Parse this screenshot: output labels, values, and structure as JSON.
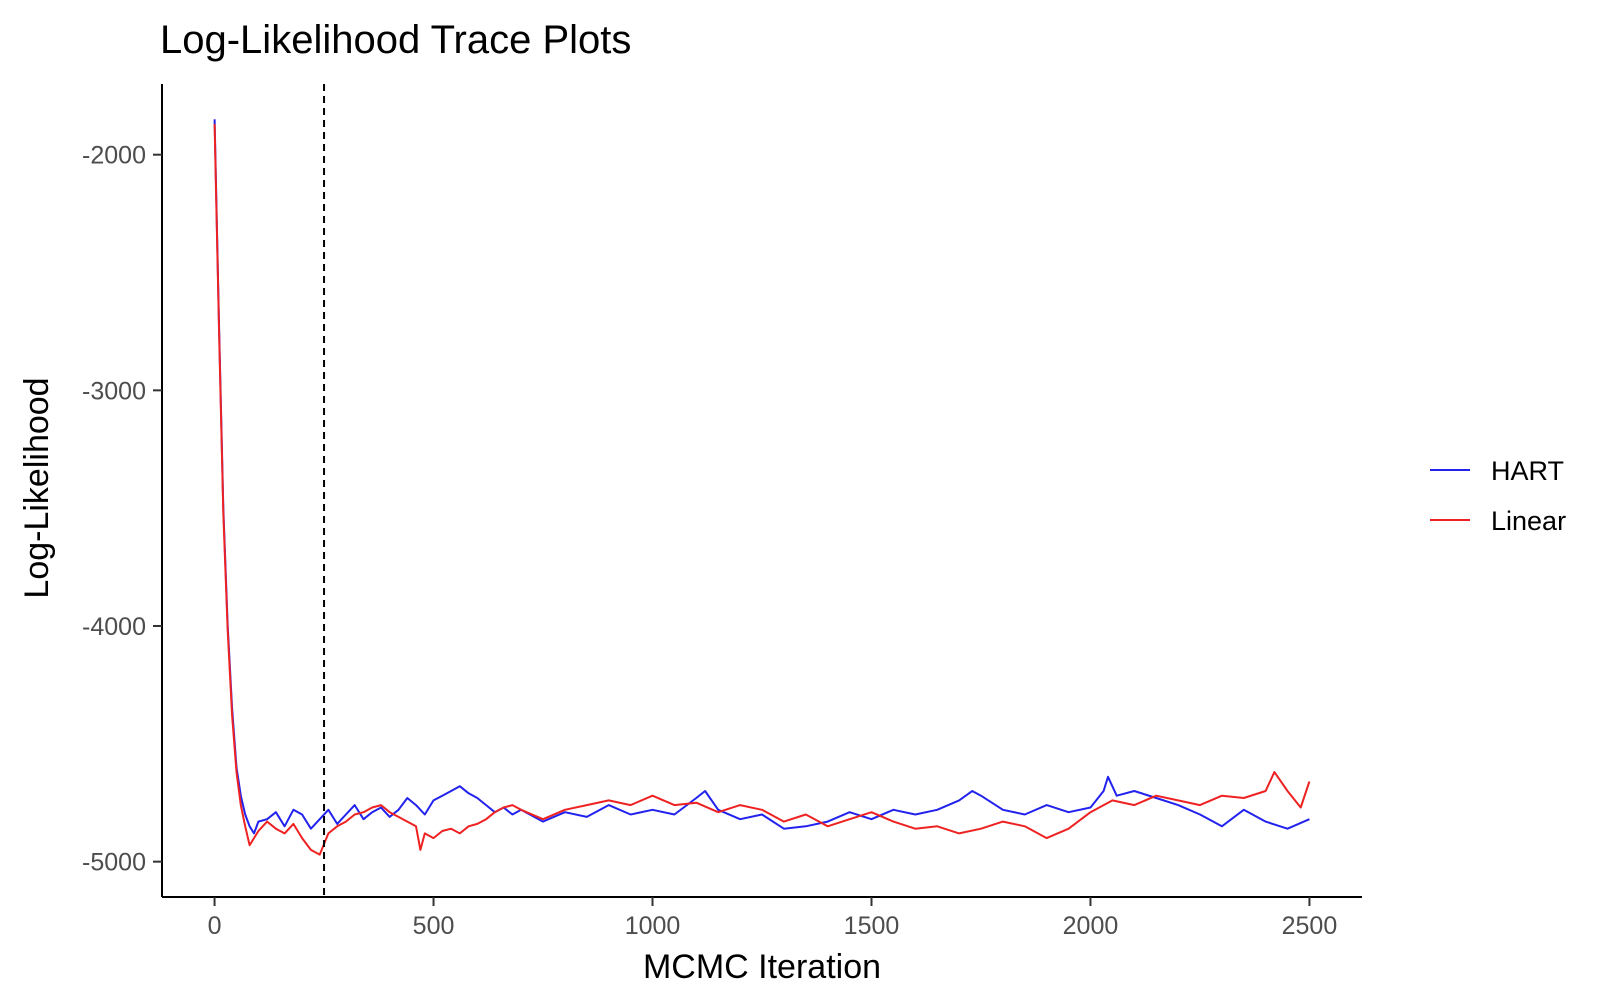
{
  "chart_data": {
    "type": "line",
    "title": "Log-Likelihood Trace Plots",
    "xlabel": "MCMC Iteration",
    "ylabel": "Log-Likelihood",
    "xlim": [
      -120,
      2620
    ],
    "ylim": [
      -5150,
      -1700
    ],
    "x_ticks": [
      0,
      500,
      1000,
      1500,
      2000,
      2500
    ],
    "y_ticks": [
      -5000,
      -4000,
      -3000,
      -2000
    ],
    "x_tick_labels": [
      "0",
      "500",
      "1000",
      "1500",
      "2000",
      "2500"
    ],
    "y_tick_labels": [
      "-5000",
      "-4000",
      "-3000",
      "-2000"
    ],
    "grid": false,
    "legend_position": "right",
    "reference_line": {
      "x": 250,
      "style": "dashed",
      "color": "#000000"
    },
    "series": [
      {
        "name": "HART",
        "color": "#2222ee",
        "x": [
          0,
          10,
          20,
          30,
          40,
          50,
          60,
          70,
          80,
          90,
          100,
          120,
          140,
          160,
          180,
          200,
          220,
          240,
          260,
          280,
          300,
          320,
          340,
          360,
          380,
          400,
          420,
          440,
          460,
          480,
          500,
          520,
          540,
          560,
          580,
          600,
          620,
          640,
          660,
          680,
          700,
          750,
          800,
          850,
          900,
          950,
          1000,
          1050,
          1100,
          1120,
          1150,
          1200,
          1250,
          1300,
          1350,
          1400,
          1450,
          1500,
          1550,
          1600,
          1650,
          1700,
          1730,
          1750,
          1800,
          1850,
          1900,
          1950,
          2000,
          2030,
          2040,
          2060,
          2100,
          2150,
          2200,
          2250,
          2300,
          2350,
          2400,
          2450,
          2500
        ],
        "y": [
          -1850,
          -2700,
          -3500,
          -4000,
          -4350,
          -4600,
          -4720,
          -4800,
          -4850,
          -4880,
          -4830,
          -4820,
          -4790,
          -4850,
          -4780,
          -4800,
          -4860,
          -4820,
          -4780,
          -4840,
          -4800,
          -4760,
          -4820,
          -4790,
          -4770,
          -4810,
          -4780,
          -4730,
          -4760,
          -4800,
          -4740,
          -4720,
          -4700,
          -4680,
          -4710,
          -4730,
          -4760,
          -4790,
          -4770,
          -4800,
          -4780,
          -4830,
          -4790,
          -4810,
          -4760,
          -4800,
          -4780,
          -4800,
          -4730,
          -4700,
          -4780,
          -4820,
          -4800,
          -4860,
          -4850,
          -4830,
          -4790,
          -4820,
          -4780,
          -4800,
          -4780,
          -4740,
          -4700,
          -4720,
          -4780,
          -4800,
          -4760,
          -4790,
          -4770,
          -4700,
          -4640,
          -4720,
          -4700,
          -4730,
          -4760,
          -4800,
          -4850,
          -4780,
          -4830,
          -4860,
          -4820
        ]
      },
      {
        "name": "Linear",
        "color": "#ee2222",
        "x": [
          0,
          10,
          20,
          30,
          40,
          50,
          60,
          70,
          80,
          90,
          100,
          120,
          140,
          160,
          180,
          200,
          220,
          240,
          260,
          280,
          300,
          320,
          340,
          360,
          380,
          400,
          420,
          440,
          460,
          470,
          480,
          500,
          520,
          540,
          560,
          580,
          600,
          620,
          640,
          660,
          680,
          700,
          750,
          800,
          850,
          900,
          950,
          1000,
          1050,
          1100,
          1150,
          1200,
          1250,
          1300,
          1350,
          1400,
          1450,
          1500,
          1550,
          1600,
          1650,
          1700,
          1750,
          1800,
          1850,
          1900,
          1950,
          2000,
          2050,
          2100,
          2150,
          2200,
          2250,
          2300,
          2350,
          2400,
          2420,
          2450,
          2480,
          2500
        ],
        "y": [
          -1870,
          -2720,
          -3520,
          -4020,
          -4380,
          -4620,
          -4760,
          -4850,
          -4930,
          -4900,
          -4870,
          -4830,
          -4860,
          -4880,
          -4840,
          -4900,
          -4950,
          -4970,
          -4880,
          -4850,
          -4830,
          -4800,
          -4790,
          -4770,
          -4760,
          -4790,
          -4810,
          -4830,
          -4850,
          -4950,
          -4880,
          -4900,
          -4870,
          -4860,
          -4880,
          -4850,
          -4840,
          -4820,
          -4790,
          -4770,
          -4760,
          -4780,
          -4820,
          -4780,
          -4760,
          -4740,
          -4760,
          -4720,
          -4760,
          -4750,
          -4790,
          -4760,
          -4780,
          -4830,
          -4800,
          -4850,
          -4820,
          -4790,
          -4830,
          -4860,
          -4850,
          -4880,
          -4860,
          -4830,
          -4850,
          -4900,
          -4860,
          -4790,
          -4740,
          -4760,
          -4720,
          -4740,
          -4760,
          -4720,
          -4730,
          -4700,
          -4620,
          -4700,
          -4770,
          -4660
        ]
      }
    ]
  }
}
